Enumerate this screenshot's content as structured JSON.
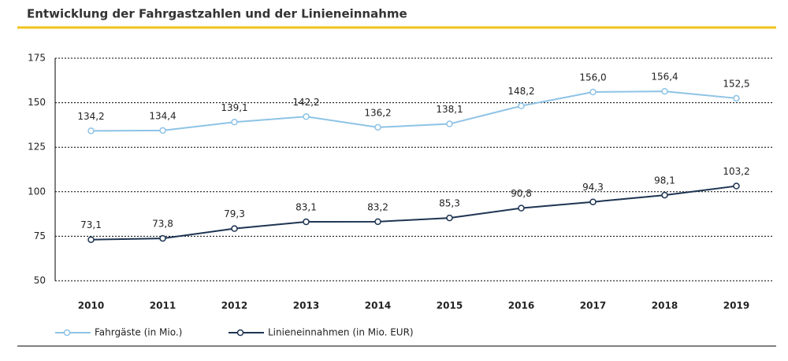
{
  "chart_data": {
    "type": "line",
    "title": "Entwicklung der Fahrgastzahlen und der Linieneinnahme",
    "categories": [
      "2010",
      "2011",
      "2012",
      "2013",
      "2014",
      "2015",
      "2016",
      "2017",
      "2018",
      "2019"
    ],
    "series": [
      {
        "name": "Fahrgäste (in Mio.)",
        "color": "#8ec3e6",
        "values": [
          134.2,
          134.4,
          139.1,
          142.2,
          136.2,
          138.1,
          148.2,
          156.0,
          156.4,
          152.5
        ],
        "value_labels": [
          "134,2",
          "134,4",
          "139,1",
          "142,2",
          "136,2",
          "138,1",
          "148,2",
          "156,0",
          "156,4",
          "152,5"
        ]
      },
      {
        "name": "Linieneinnahmen (in Mio. EUR)",
        "color": "#1e3452",
        "values": [
          73.1,
          73.8,
          79.3,
          83.1,
          83.2,
          85.3,
          90.8,
          94.3,
          98.1,
          103.2
        ],
        "value_labels": [
          "73,1",
          "73,8",
          "79,3",
          "83,1",
          "83,2",
          "85,3",
          "90,8",
          "94,3",
          "98,1",
          "103,2"
        ]
      }
    ],
    "ylim": [
      50,
      175
    ],
    "yticks": [
      50,
      75,
      100,
      125,
      150,
      175
    ],
    "grid": true,
    "legend": "bottom-left"
  }
}
